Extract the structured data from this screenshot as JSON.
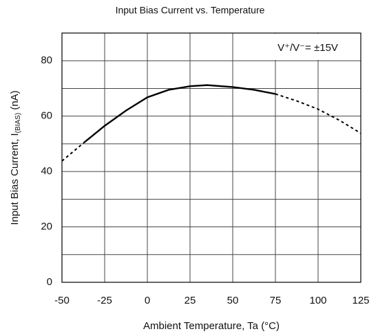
{
  "chart_data": {
    "type": "line",
    "title": "Input Bias Current vs. Temperature",
    "xlabel": "Ambient Temperature, Ta (°C)",
    "ylabel": "Input Bias Current, I",
    "ylabel_sub": "(BIAS)",
    "ylabel_unit": " (nA)",
    "annotation": "V⁺/V⁻= ±15V",
    "x": [
      -50,
      -37,
      -25,
      -12.5,
      0,
      12.5,
      25,
      35,
      50,
      62.5,
      75,
      87.5,
      100,
      112.5,
      125
    ],
    "series": [
      {
        "color": "#000000",
        "dash": false,
        "values": [
          null,
          50.5,
          56.5,
          62,
          66.8,
          69.5,
          70.8,
          71.2,
          70.5,
          69.5,
          68,
          null,
          null,
          null,
          null
        ]
      },
      {
        "color": "#000000",
        "dash": true,
        "values": [
          43.8,
          50.5,
          null,
          null,
          null,
          null,
          null,
          null,
          null,
          null,
          68,
          65.5,
          62.5,
          58.5,
          53.8
        ]
      }
    ],
    "xlim": [
      -50,
      125
    ],
    "ylim": [
      0,
      90
    ],
    "xticks": [
      -50,
      -25,
      0,
      25,
      50,
      75,
      100,
      125
    ],
    "yticks": [
      0,
      20,
      40,
      60,
      80
    ],
    "ygrid": [
      10,
      30,
      50,
      70,
      90
    ],
    "grid": true
  }
}
